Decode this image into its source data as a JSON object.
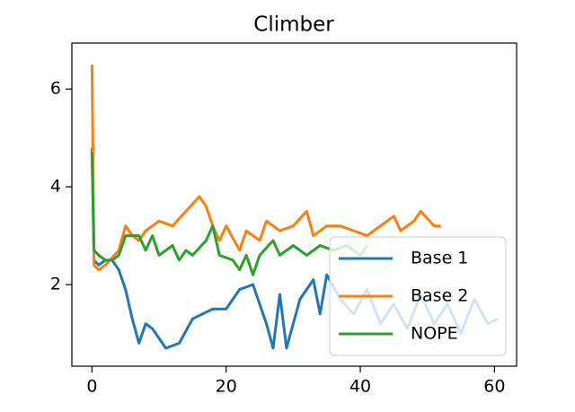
{
  "chart_data": {
    "type": "line",
    "title": "Climber",
    "xlim": [
      -3,
      63.3
    ],
    "ylim": [
      0.33,
      6.94
    ],
    "xticks": [
      0,
      20,
      40,
      60
    ],
    "yticks": [
      2,
      4,
      6
    ],
    "legend": "lower right",
    "series": [
      {
        "name": "Base 1",
        "color": "#1f77b4",
        "x": [
          0,
          0.3,
          1,
          2,
          3,
          4,
          5,
          6,
          7,
          8,
          9,
          11,
          13,
          15,
          18,
          20,
          22,
          24,
          25,
          26,
          27,
          28,
          29,
          31,
          33,
          34,
          35,
          37,
          39,
          41,
          43,
          45,
          47,
          49,
          51,
          53,
          55,
          57,
          59,
          60.5
        ],
        "values": [
          4.8,
          2.5,
          2.4,
          2.5,
          2.5,
          2.3,
          1.9,
          1.3,
          0.8,
          1.2,
          1.1,
          0.7,
          0.8,
          1.3,
          1.5,
          1.5,
          1.9,
          2.0,
          1.6,
          1.2,
          0.7,
          1.8,
          0.7,
          1.7,
          2.1,
          1.4,
          2.2,
          1.7,
          1.4,
          1.9,
          1.2,
          1.6,
          1.1,
          1.8,
          1.2,
          1.6,
          1.0,
          1.7,
          1.2,
          1.3
        ]
      },
      {
        "name": "Base 2",
        "color": "#ff7f0e",
        "x": [
          0,
          0.3,
          1,
          2,
          4,
          5,
          6,
          7,
          8,
          10,
          12,
          14,
          16,
          17,
          18,
          19,
          20,
          22,
          23,
          25,
          26,
          28,
          30,
          32,
          33,
          35,
          37,
          39,
          41,
          43,
          45,
          46,
          48,
          49,
          51,
          52
        ],
        "values": [
          6.5,
          2.4,
          2.3,
          2.4,
          2.7,
          3.2,
          3.0,
          2.9,
          3.1,
          3.3,
          3.2,
          3.5,
          3.8,
          3.6,
          3.2,
          2.9,
          3.2,
          2.7,
          3.1,
          2.9,
          3.3,
          3.1,
          3.2,
          3.5,
          3.0,
          3.2,
          3.2,
          3.1,
          3.0,
          3.2,
          3.4,
          3.1,
          3.3,
          3.5,
          3.2,
          3.2
        ]
      },
      {
        "name": "NOPE",
        "color": "#2ca02c",
        "x": [
          0,
          0.3,
          1,
          2,
          3,
          4,
          5,
          7,
          8,
          9,
          10,
          12,
          13,
          14,
          15,
          17,
          18,
          19,
          21,
          22,
          23,
          24,
          25,
          27,
          28,
          30,
          32,
          34,
          36,
          38,
          40,
          41
        ],
        "values": [
          4.7,
          2.7,
          2.6,
          2.5,
          2.5,
          2.6,
          3.0,
          3.0,
          2.7,
          3.0,
          2.6,
          2.8,
          2.5,
          2.7,
          2.6,
          2.9,
          3.2,
          2.6,
          2.5,
          2.3,
          2.6,
          2.2,
          2.6,
          2.9,
          2.6,
          2.8,
          2.6,
          2.8,
          2.7,
          2.8,
          2.6,
          2.8
        ]
      }
    ]
  }
}
